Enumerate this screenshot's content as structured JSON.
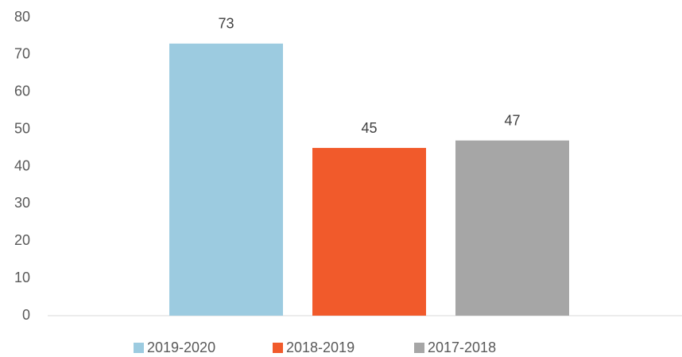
{
  "chart_data": {
    "type": "bar",
    "categories": [
      null
    ],
    "series": [
      {
        "name": "2019-2020",
        "color": "#9ccbe0",
        "values": [
          73
        ]
      },
      {
        "name": "2018-2019",
        "color": "#f15a2b",
        "values": [
          45
        ]
      },
      {
        "name": "2017-2018",
        "color": "#a6a6a6",
        "values": [
          47
        ]
      }
    ],
    "ylim": [
      0,
      80
    ],
    "yticks": [
      0,
      10,
      20,
      30,
      40,
      50,
      60,
      70,
      80
    ],
    "grid": false,
    "legend": "bottom"
  }
}
